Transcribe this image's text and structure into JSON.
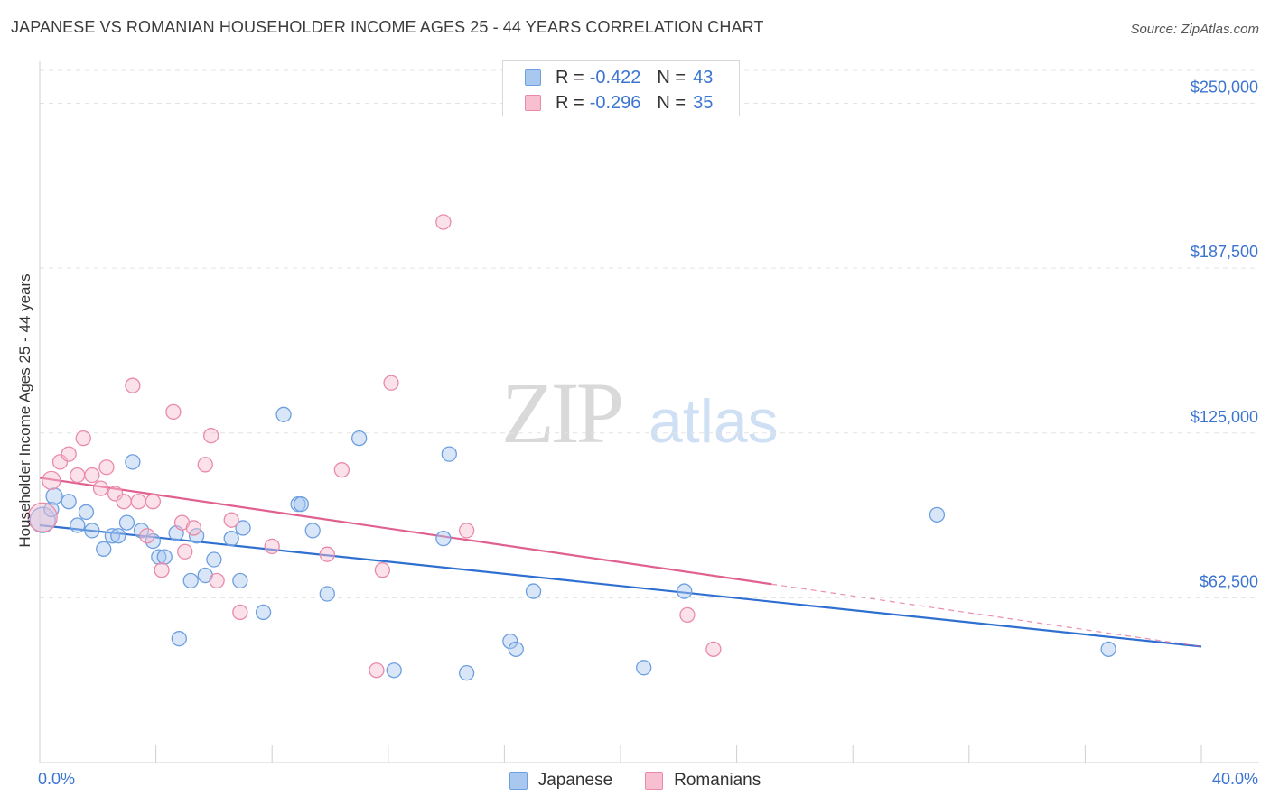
{
  "title": "JAPANESE VS ROMANIAN HOUSEHOLDER INCOME AGES 25 - 44 YEARS CORRELATION CHART",
  "source": "Source: ZipAtlas.com",
  "watermark": {
    "zip": "ZIP",
    "atlas": "atlas"
  },
  "legend": {
    "rows": [
      {
        "r_label": "R =",
        "r_value": "-0.422",
        "n_label": "N =",
        "n_value": "43",
        "color": "#a9c8f0",
        "stroke": "#6d9fe0"
      },
      {
        "r_label": "R =",
        "r_value": "-0.296",
        "n_label": "N =",
        "n_value": "35",
        "color": "#f7bfd0",
        "stroke": "#e98aa9"
      }
    ]
  },
  "bottom_legend": [
    {
      "label": "Japanese",
      "color": "#a9c8f0",
      "stroke": "#6d9fe0"
    },
    {
      "label": "Romanians",
      "color": "#f7bfd0",
      "stroke": "#e98aa9"
    }
  ],
  "chart_data": {
    "type": "scatter",
    "title": "JAPANESE VS ROMANIAN HOUSEHOLDER INCOME AGES 25 - 44 YEARS CORRELATION CHART",
    "xlabel": "",
    "ylabel": "Householder Income Ages 25 - 44 years",
    "xlim": [
      0,
      40
    ],
    "ylim": [
      0,
      262500
    ],
    "x_tick_labels": [
      "0.0%",
      "40.0%"
    ],
    "y_ticks": [
      62500,
      125000,
      187500,
      250000
    ],
    "y_tick_labels": [
      "$62,500",
      "$125,000",
      "$187,500",
      "$250,000"
    ],
    "grid": "horizontal dashed",
    "legend_position": "top-center",
    "series": [
      {
        "name": "Japanese",
        "color": "#a9c8f0",
        "stroke": "#6d9fe0",
        "line_color": "#2f6fd1",
        "trend": {
          "x": [
            0,
            40
          ],
          "y": [
            90000,
            44000
          ],
          "solid_until": 40
        },
        "points": [
          [
            0.1,
            92000,
            14
          ],
          [
            0.4,
            96000,
            8
          ],
          [
            0.5,
            101000,
            9
          ],
          [
            1.0,
            99000,
            8
          ],
          [
            1.3,
            90000,
            8
          ],
          [
            1.6,
            95000,
            8
          ],
          [
            1.8,
            88000,
            8
          ],
          [
            2.2,
            81000,
            8
          ],
          [
            2.5,
            86000,
            8
          ],
          [
            2.7,
            86000,
            8
          ],
          [
            3.0,
            91000,
            8
          ],
          [
            3.2,
            114000,
            8
          ],
          [
            3.5,
            88000,
            8
          ],
          [
            3.9,
            84000,
            8
          ],
          [
            4.1,
            78000,
            8
          ],
          [
            4.3,
            78000,
            8
          ],
          [
            4.7,
            87000,
            8
          ],
          [
            4.8,
            47000,
            8
          ],
          [
            5.2,
            69000,
            8
          ],
          [
            5.4,
            86000,
            8
          ],
          [
            5.7,
            71000,
            8
          ],
          [
            6.0,
            77000,
            8
          ],
          [
            6.6,
            85000,
            8
          ],
          [
            6.9,
            69000,
            8
          ],
          [
            7.0,
            89000,
            8
          ],
          [
            7.7,
            57000,
            8
          ],
          [
            8.4,
            132000,
            8
          ],
          [
            8.9,
            98000,
            8
          ],
          [
            9.0,
            98000,
            8
          ],
          [
            9.4,
            88000,
            8
          ],
          [
            9.9,
            64000,
            8
          ],
          [
            11.0,
            123000,
            8
          ],
          [
            12.2,
            35000,
            8
          ],
          [
            13.9,
            85000,
            8
          ],
          [
            14.1,
            117000,
            8
          ],
          [
            14.7,
            34000,
            8
          ],
          [
            16.2,
            46000,
            8
          ],
          [
            16.4,
            43000,
            8
          ],
          [
            17.0,
            65000,
            8
          ],
          [
            20.8,
            36000,
            8
          ],
          [
            22.2,
            65000,
            8
          ],
          [
            30.9,
            94000,
            8
          ],
          [
            36.8,
            43000,
            8
          ]
        ]
      },
      {
        "name": "Romanians",
        "color": "#f7bfd0",
        "stroke": "#e98aa9",
        "line_color": "#e0608f",
        "trend": {
          "x": [
            0,
            40
          ],
          "y": [
            108000,
            44000
          ],
          "solid_until": 25.2
        },
        "points": [
          [
            0.1,
            93000,
            16
          ],
          [
            0.4,
            107000,
            10
          ],
          [
            0.7,
            114000,
            8
          ],
          [
            1.0,
            117000,
            8
          ],
          [
            1.3,
            109000,
            8
          ],
          [
            1.5,
            123000,
            8
          ],
          [
            1.8,
            109000,
            8
          ],
          [
            2.1,
            104000,
            8
          ],
          [
            2.3,
            112000,
            8
          ],
          [
            2.6,
            102000,
            8
          ],
          [
            2.9,
            99000,
            8
          ],
          [
            3.2,
            143000,
            8
          ],
          [
            3.4,
            99000,
            8
          ],
          [
            3.7,
            86000,
            8
          ],
          [
            3.9,
            99000,
            8
          ],
          [
            4.2,
            73000,
            8
          ],
          [
            4.6,
            133000,
            8
          ],
          [
            4.9,
            91000,
            8
          ],
          [
            5.0,
            80000,
            8
          ],
          [
            5.3,
            89000,
            8
          ],
          [
            5.7,
            113000,
            8
          ],
          [
            5.9,
            124000,
            8
          ],
          [
            6.1,
            69000,
            8
          ],
          [
            6.6,
            92000,
            8
          ],
          [
            6.9,
            57000,
            8
          ],
          [
            8.0,
            82000,
            8
          ],
          [
            9.9,
            79000,
            8
          ],
          [
            10.4,
            111000,
            8
          ],
          [
            11.6,
            35000,
            8
          ],
          [
            11.8,
            73000,
            8
          ],
          [
            12.1,
            144000,
            8
          ],
          [
            13.9,
            205000,
            8
          ],
          [
            14.7,
            88000,
            8
          ],
          [
            22.3,
            56000,
            8
          ],
          [
            23.2,
            43000,
            8
          ]
        ]
      }
    ]
  }
}
